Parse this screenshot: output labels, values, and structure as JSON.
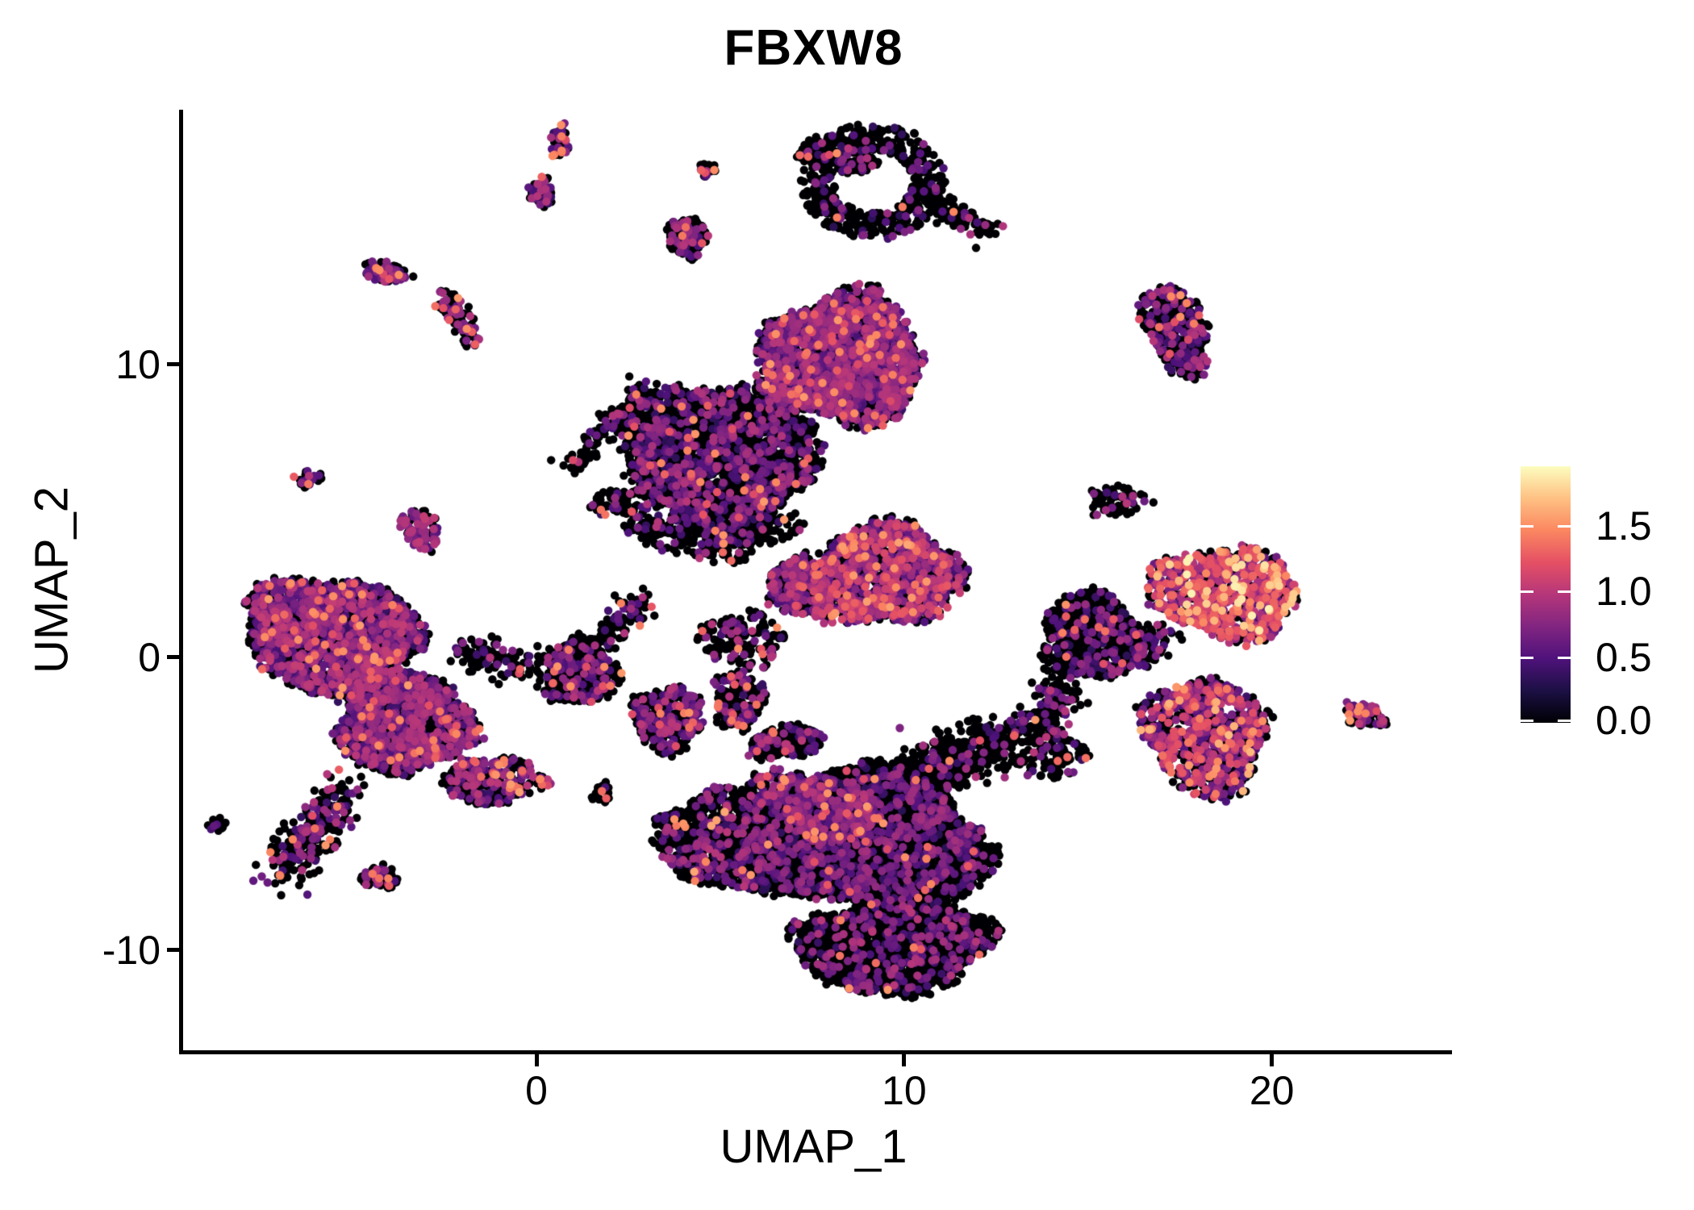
{
  "chart_data": {
    "type": "scatter",
    "title": "FBXW8",
    "xlabel": "UMAP_1",
    "ylabel": "UMAP_2",
    "axes": {
      "x_range": [
        -9.61,
        24.9
      ],
      "y_range": [
        -13.42,
        18.7
      ],
      "x_ticks": [
        0,
        10,
        20
      ],
      "x_tick_labels": [
        "0",
        "10",
        "20"
      ],
      "y_ticks": [
        -10,
        0,
        10
      ],
      "y_tick_labels": [
        "-10",
        "0",
        "10"
      ],
      "grid": false,
      "axis_color": "#000000"
    },
    "legend": {
      "position": "right",
      "ticks": [
        0.0,
        0.5,
        1.0,
        1.5
      ],
      "labels": [
        "0.0",
        "0.5",
        "1.0",
        "1.5"
      ]
    },
    "colormap": {
      "name": "magma",
      "domain": [
        0,
        1.952
      ],
      "anchors": [
        "#000004",
        "#1C1044",
        "#4F127B",
        "#812581",
        "#B5367A",
        "#E55064",
        "#FB8761",
        "#FEC183",
        "#FCFDBF"
      ]
    },
    "point_radius_px": 5.2,
    "background": "#ffffff",
    "seed": 12345,
    "clusters": [
      {
        "name": "left-main-upper",
        "shape": "blob",
        "c": [
          -5.6,
          0.8
        ],
        "rx": 2.3,
        "ry": 1.9,
        "rot": -12,
        "n": 2400,
        "pos": 0.42,
        "lo": 0.35,
        "hi": 1.05,
        "out": 0.022
      },
      {
        "name": "left-main-lower",
        "shape": "blob",
        "c": [
          -3.6,
          -2.2
        ],
        "rx": 1.8,
        "ry": 1.7,
        "rot": -20,
        "n": 1700,
        "pos": 0.4,
        "out": 0.02
      },
      {
        "name": "left-ext-se",
        "shape": "blob",
        "c": [
          -1.6,
          -4.3
        ],
        "rx": 0.95,
        "ry": 0.7,
        "rot": -30,
        "n": 240,
        "pos": 0.3
      },
      {
        "name": "left-tail",
        "shape": "strand",
        "a": [
          -5.2,
          -4.5
        ],
        "b": [
          -6.9,
          -7.35
        ],
        "w": 0.35,
        "n": 260,
        "pos": 0.35,
        "out": 0.05
      },
      {
        "name": "left-tail-blob",
        "shape": "blob",
        "c": [
          -4.25,
          -7.5
        ],
        "rx": 0.5,
        "ry": 0.38,
        "rot": 0,
        "n": 70,
        "pos": 0.3,
        "out": 0.06
      },
      {
        "name": "left-dots-w",
        "shape": "blob",
        "c": [
          -8.75,
          -5.7
        ],
        "rx": 0.32,
        "ry": 0.26,
        "rot": 0,
        "n": 14,
        "pos": 0.25
      },
      {
        "name": "left-sat",
        "shape": "blob",
        "c": [
          -3.15,
          4.4
        ],
        "rx": 0.48,
        "ry": 0.72,
        "rot": 15,
        "n": 100,
        "pos": 0.55,
        "lo": 0.5,
        "hi": 1.05
      },
      {
        "name": "left-sat-nw",
        "shape": "blob",
        "c": [
          -6.2,
          6.1
        ],
        "rx": 0.42,
        "ry": 0.3,
        "rot": 10,
        "n": 32,
        "pos": 0.4
      },
      {
        "name": "topleft-elong",
        "shape": "blob",
        "c": [
          -4.1,
          13.15
        ],
        "rx": 0.64,
        "ry": 0.33,
        "rot": -15,
        "n": 95,
        "pos": 0.45,
        "out": 0.07
      },
      {
        "name": "topleft-strand",
        "shape": "strand",
        "a": [
          -2.5,
          12.35
        ],
        "b": [
          -1.75,
          10.75
        ],
        "w": 0.16,
        "n": 95,
        "pos": 0.28,
        "out": 0.04
      },
      {
        "name": "top-tiny-1",
        "shape": "blob",
        "c": [
          0.63,
          17.6
        ],
        "rx": 0.26,
        "ry": 0.6,
        "rot": 0,
        "n": 40,
        "pos": 0.3,
        "out": 0.12
      },
      {
        "name": "top-tiny-2",
        "shape": "blob",
        "c": [
          0.15,
          15.9
        ],
        "rx": 0.34,
        "ry": 0.46,
        "rot": 0,
        "n": 55,
        "pos": 0.45
      },
      {
        "name": "top-small",
        "shape": "blob",
        "c": [
          4.1,
          14.35
        ],
        "rx": 0.52,
        "ry": 0.66,
        "rot": 0,
        "n": 150,
        "pos": 0.32
      },
      {
        "name": "top-tiny-3",
        "shape": "blob",
        "c": [
          4.65,
          16.65
        ],
        "rx": 0.2,
        "ry": 0.3,
        "rot": 0,
        "n": 22,
        "pos": 0.3,
        "out": 0.15
      },
      {
        "name": "top-ring",
        "shape": "ring",
        "c": [
          9.17,
          16.25
        ],
        "r_in": 1.05,
        "r_out": 2.0,
        "n": 520,
        "pos": 0.13,
        "lo": 0.3,
        "hi": 0.85,
        "out": 0.012
      },
      {
        "name": "top-ring-cap",
        "shape": "blob",
        "c": [
          8.2,
          17.15
        ],
        "rx": 1.1,
        "ry": 0.55,
        "rot": -15,
        "n": 170,
        "pos": 0.12
      },
      {
        "name": "top-ring-tail",
        "shape": "strand",
        "a": [
          11.0,
          15.4
        ],
        "b": [
          12.35,
          14.55
        ],
        "w": 0.2,
        "n": 80,
        "pos": 0.1
      },
      {
        "name": "central-head",
        "shape": "blob",
        "c": [
          8.3,
          10.2
        ],
        "rx": 2.15,
        "ry": 2.15,
        "rot": 0,
        "n": 2700,
        "pos": 0.5,
        "lo": 0.35,
        "hi": 1.0,
        "out": 0.025
      },
      {
        "name": "central-body",
        "shape": "blob",
        "c": [
          5.0,
          6.9
        ],
        "rx": 2.6,
        "ry": 2.5,
        "rot": -15,
        "n": 2700,
        "pos": 0.22,
        "lo": 0.3,
        "hi": 0.95,
        "out": 0.012
      },
      {
        "name": "central-fringe",
        "shape": "blob",
        "c": [
          4.6,
          4.6
        ],
        "rx": 2.4,
        "ry": 1.15,
        "rot": -8,
        "n": 420,
        "pos": 0.2
      },
      {
        "name": "central-strand",
        "shape": "strand",
        "a": [
          0.95,
          6.4
        ],
        "b": [
          2.85,
          9.1
        ],
        "w": 0.2,
        "n": 120,
        "pos": 0.25
      },
      {
        "name": "central-dots",
        "shape": "blob",
        "c": [
          1.9,
          5.3
        ],
        "rx": 0.5,
        "ry": 0.45,
        "rot": 0,
        "n": 40,
        "pos": 0.2
      },
      {
        "name": "midright-main",
        "shape": "blob",
        "c": [
          9.5,
          2.8
        ],
        "rx": 2.0,
        "ry": 1.7,
        "rot": 8,
        "n": 1400,
        "pos": 0.52,
        "lo": 0.4,
        "hi": 1.15,
        "out": 0.05,
        "o_lo": 1.2,
        "o_hi": 1.6
      },
      {
        "name": "midright-hook",
        "shape": "blob",
        "c": [
          7.1,
          2.4
        ],
        "rx": 0.78,
        "ry": 1.0,
        "rot": 0,
        "n": 320,
        "pos": 0.5,
        "lo": 0.4,
        "hi": 1.1
      },
      {
        "name": "midright-sparse",
        "shape": "blob",
        "c": [
          5.6,
          0.6
        ],
        "rx": 1.15,
        "ry": 0.9,
        "rot": 0,
        "n": 150,
        "pos": 0.25
      },
      {
        "name": "mid-small-1",
        "shape": "blob",
        "c": [
          3.6,
          -2.1
        ],
        "rx": 0.95,
        "ry": 1.1,
        "rot": 0,
        "n": 300,
        "pos": 0.35,
        "lo": 0.4,
        "hi": 1.0,
        "out": 0.02
      },
      {
        "name": "mid-small-2",
        "shape": "blob",
        "c": [
          5.5,
          -1.45
        ],
        "rx": 0.68,
        "ry": 1.0,
        "rot": 0,
        "n": 190,
        "pos": 0.18,
        "out": 0.035
      },
      {
        "name": "mid-small-3",
        "shape": "blob",
        "c": [
          -0.55,
          -4.1
        ],
        "rx": 0.82,
        "ry": 0.6,
        "rot": -15,
        "n": 120,
        "pos": 0.42,
        "lo": 0.5,
        "hi": 1.15,
        "out": 0.12,
        "o_lo": 1.3,
        "o_hi": 1.6
      },
      {
        "name": "mid-hook",
        "shape": "blob",
        "c": [
          1.2,
          -0.5
        ],
        "rx": 0.95,
        "ry": 1.1,
        "rot": 0,
        "n": 420,
        "pos": 0.25
      },
      {
        "name": "mid-hook-strand",
        "shape": "strand",
        "a": [
          1.7,
          0.5
        ],
        "b": [
          2.95,
          2.1
        ],
        "w": 0.22,
        "n": 100,
        "pos": 0.2
      },
      {
        "name": "mid-tiny",
        "shape": "blob",
        "c": [
          1.75,
          -4.6
        ],
        "rx": 0.3,
        "ry": 0.34,
        "rot": 0,
        "n": 22,
        "pos": 0.35,
        "out": 0.15
      },
      {
        "name": "mid-bridge",
        "shape": "strand",
        "a": [
          -1.9,
          0.2
        ],
        "b": [
          0.3,
          -0.4
        ],
        "w": 0.3,
        "n": 120,
        "pos": 0.22
      },
      {
        "name": "right-top",
        "shape": "blob",
        "c": [
          17.4,
          11.2
        ],
        "rx": 0.8,
        "ry": 1.6,
        "rot": 18,
        "n": 430,
        "pos": 0.28,
        "out": 0.02
      },
      {
        "name": "right-dots-n",
        "shape": "blob",
        "c": [
          15.75,
          5.35
        ],
        "rx": 0.85,
        "ry": 0.55,
        "rot": 0,
        "n": 65,
        "pos": 0.22
      },
      {
        "name": "right-black",
        "shape": "blob",
        "c": [
          15.1,
          0.7
        ],
        "rx": 1.35,
        "ry": 1.45,
        "rot": 0,
        "n": 750,
        "pos": 0.17,
        "lo": 0.3,
        "hi": 0.9
      },
      {
        "name": "right-black-tail",
        "shape": "strand",
        "a": [
          14.5,
          -0.9
        ],
        "b": [
          13.6,
          -2.3
        ],
        "w": 0.3,
        "n": 130,
        "pos": 0.2
      },
      {
        "name": "right-hi-top",
        "shape": "blob",
        "c": [
          18.7,
          2.2
        ],
        "rx": 2.0,
        "ry": 1.5,
        "rot": -10,
        "n": 950,
        "pos": 0.62,
        "lo": 0.45,
        "hi": 1.35,
        "pw": 0.95,
        "out": 0.08,
        "o_lo": 1.4,
        "o_hi": 1.92
      },
      {
        "name": "right-hi-link",
        "shape": "strand",
        "a": [
          17.0,
          0.8
        ],
        "b": [
          16.2,
          -0.3
        ],
        "w": 0.25,
        "n": 90,
        "pos": 0.3
      },
      {
        "name": "right-hi-bottom",
        "shape": "blob",
        "c": [
          18.2,
          -2.7
        ],
        "rx": 1.6,
        "ry": 2.0,
        "rot": 12,
        "n": 900,
        "pos": 0.55,
        "lo": 0.4,
        "hi": 1.25,
        "out": 0.06,
        "o_lo": 1.3,
        "o_hi": 1.7
      },
      {
        "name": "far-right-tiny",
        "shape": "blob",
        "c": [
          22.5,
          -1.95
        ],
        "rx": 0.6,
        "ry": 0.4,
        "rot": -25,
        "n": 65,
        "pos": 0.5,
        "lo": 0.5,
        "hi": 1.2,
        "out": 0.12,
        "o_lo": 1.4,
        "o_hi": 1.6
      },
      {
        "name": "right-dots-s",
        "shape": "blob",
        "c": [
          14.0,
          -3.3
        ],
        "rx": 0.95,
        "ry": 0.85,
        "rot": 0,
        "n": 100,
        "pos": 0.28,
        "out": 0.04,
        "o_lo": 1.3,
        "o_hi": 1.55
      },
      {
        "name": "bottom-main",
        "shape": "blob",
        "c": [
          9.0,
          -6.3
        ],
        "rx": 3.2,
        "ry": 2.4,
        "rot": -6,
        "n": 4300,
        "pos": 0.18,
        "lo": 0.3,
        "hi": 0.9,
        "out": 0.008
      },
      {
        "name": "bottom-band",
        "shape": "blob",
        "c": [
          7.6,
          -5.1
        ],
        "rx": 1.8,
        "ry": 1.0,
        "rot": -28,
        "n": 520,
        "pos": 0.5,
        "lo": 0.4,
        "hi": 1.05,
        "out": 0.035
      },
      {
        "name": "bottom-left-wing",
        "shape": "blob",
        "c": [
          5.0,
          -6.2
        ],
        "rx": 1.6,
        "ry": 1.7,
        "rot": 15,
        "n": 800,
        "pos": 0.22,
        "out": 0.02,
        "o_lo": 1.35,
        "o_hi": 1.6
      },
      {
        "name": "bottom-lobe",
        "shape": "blob",
        "c": [
          9.7,
          -9.9
        ],
        "rx": 2.6,
        "ry": 1.5,
        "rot": 4,
        "n": 1700,
        "pos": 0.15,
        "out": 0.01,
        "o_lo": 1.25,
        "o_hi": 1.55
      },
      {
        "name": "bottom-arm",
        "shape": "strand",
        "a": [
          9.9,
          -4.5
        ],
        "b": [
          12.5,
          -2.9
        ],
        "w": 0.45,
        "n": 420,
        "pos": 0.13
      },
      {
        "name": "bottom-arm-ext",
        "shape": "strand",
        "a": [
          12.5,
          -2.9
        ],
        "b": [
          13.9,
          -2.2
        ],
        "w": 0.3,
        "n": 90,
        "pos": 0.15
      },
      {
        "name": "bottom-bumps",
        "shape": "blob",
        "c": [
          6.8,
          -2.9
        ],
        "rx": 1.0,
        "ry": 0.55,
        "rot": 10,
        "n": 220,
        "pos": 0.2
      }
    ]
  }
}
